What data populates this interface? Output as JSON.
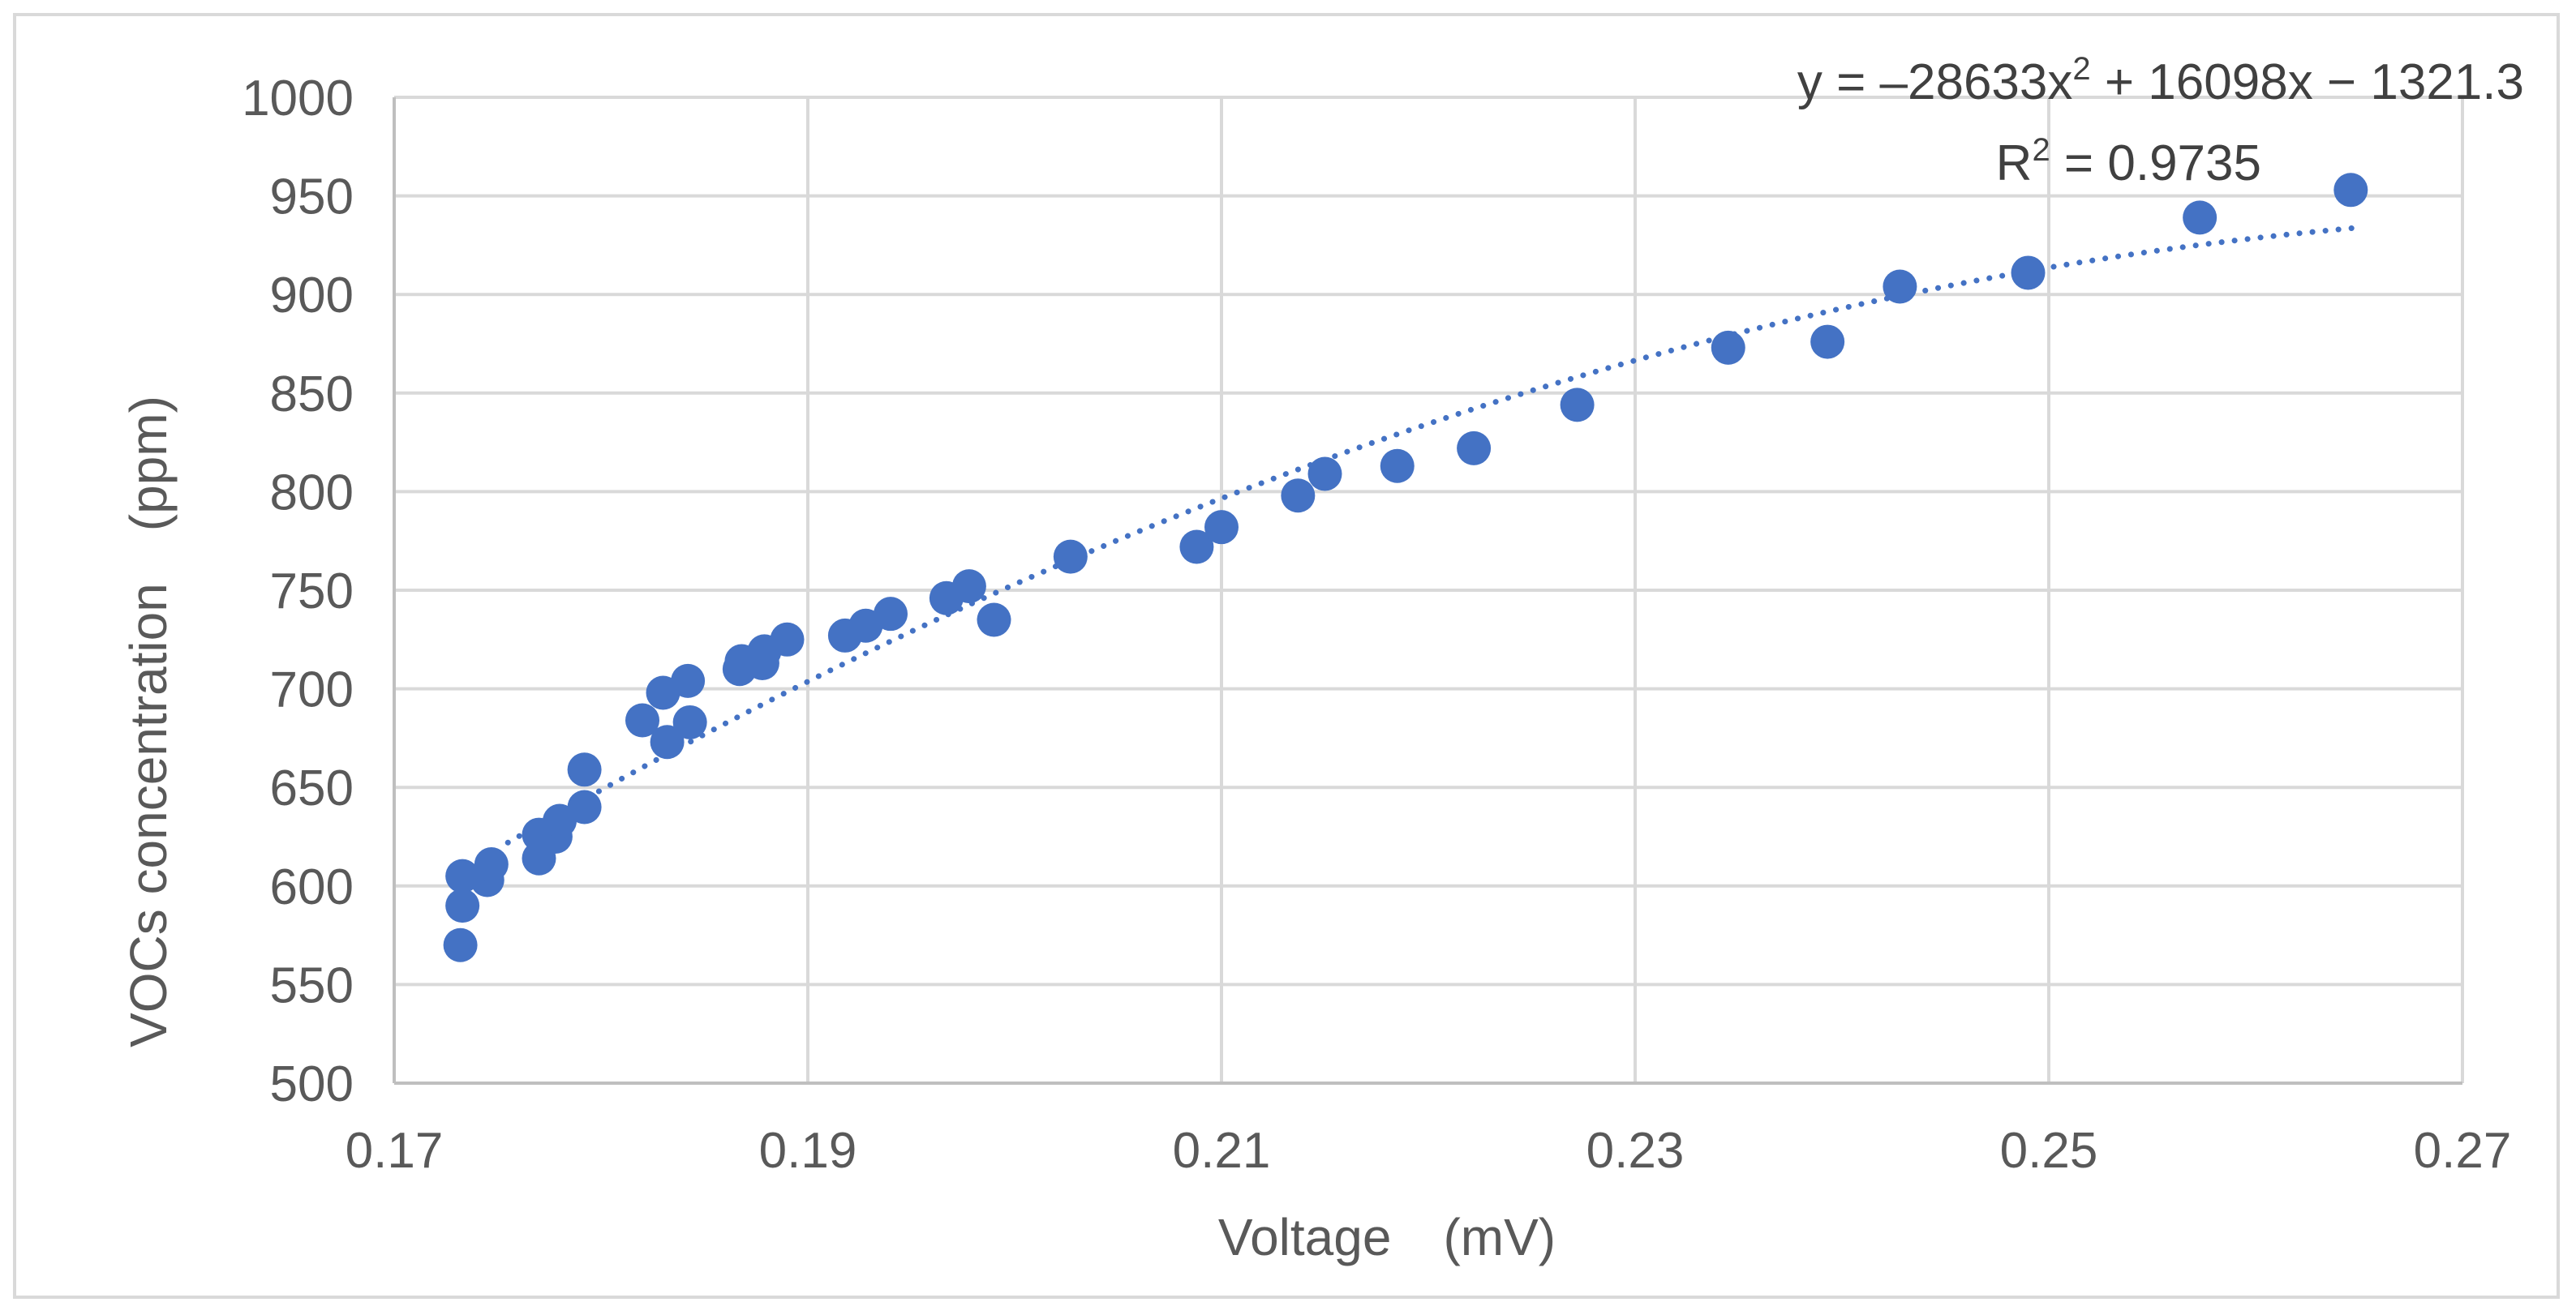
{
  "chart_data": {
    "type": "scatter",
    "title": "",
    "xlabel": "Voltage　(mV)",
    "ylabel": "VOCs concentration　(ppm)",
    "xlim": [
      0.17,
      0.27
    ],
    "ylim": [
      500,
      1000
    ],
    "x_ticks": [
      0.17,
      0.19,
      0.21,
      0.23,
      0.25,
      0.27
    ],
    "x_tick_labels": [
      "0.17",
      "0.19",
      "0.21",
      "0.23",
      "0.25",
      "0.27"
    ],
    "y_ticks": [
      500,
      550,
      600,
      650,
      700,
      750,
      800,
      850,
      900,
      950,
      1000
    ],
    "y_tick_labels": [
      "500",
      "550",
      "600",
      "650",
      "700",
      "750",
      "800",
      "850",
      "900",
      "950",
      "1000"
    ],
    "grid": true,
    "marker_color": "#4472c4",
    "trendline": {
      "type": "polynomial",
      "order": 2,
      "coefficients": [
        -28633,
        16098,
        -1321.3
      ],
      "x_range": [
        0.1755,
        0.265
      ],
      "style": "dotted",
      "color": "#4472c4",
      "equation_prefix": "y = ‒28633x",
      "equation_exponent": "2",
      "equation_suffix": " + 16098x − 1321.3",
      "r2_prefix": "R",
      "r2_exponent": "2",
      "r2_suffix": " = 0.9735"
    },
    "series": [
      {
        "name": "VOCs concentration",
        "x": [
          0.1732,
          0.1733,
          0.1733,
          0.1745,
          0.1747,
          0.177,
          0.177,
          0.1778,
          0.178,
          0.1792,
          0.1792,
          0.182,
          0.183,
          0.1832,
          0.1842,
          0.1843,
          0.1867,
          0.1868,
          0.1878,
          0.1879,
          0.189,
          0.1918,
          0.1928,
          0.194,
          0.1967,
          0.1978,
          0.199,
          0.2027,
          0.2088,
          0.21,
          0.2137,
          0.215,
          0.2185,
          0.2222,
          0.2272,
          0.2345,
          0.2393,
          0.2428,
          0.249,
          0.2573,
          0.2646
        ],
        "y": [
          570,
          590,
          605,
          603,
          611,
          614,
          626,
          625,
          633,
          640,
          659,
          684,
          698,
          673,
          704,
          683,
          710,
          714,
          713,
          719,
          725,
          727,
          732,
          738,
          746,
          752,
          735,
          767,
          772,
          782,
          798,
          809,
          813,
          822,
          844,
          873,
          876,
          904,
          911,
          939,
          953
        ]
      }
    ]
  }
}
